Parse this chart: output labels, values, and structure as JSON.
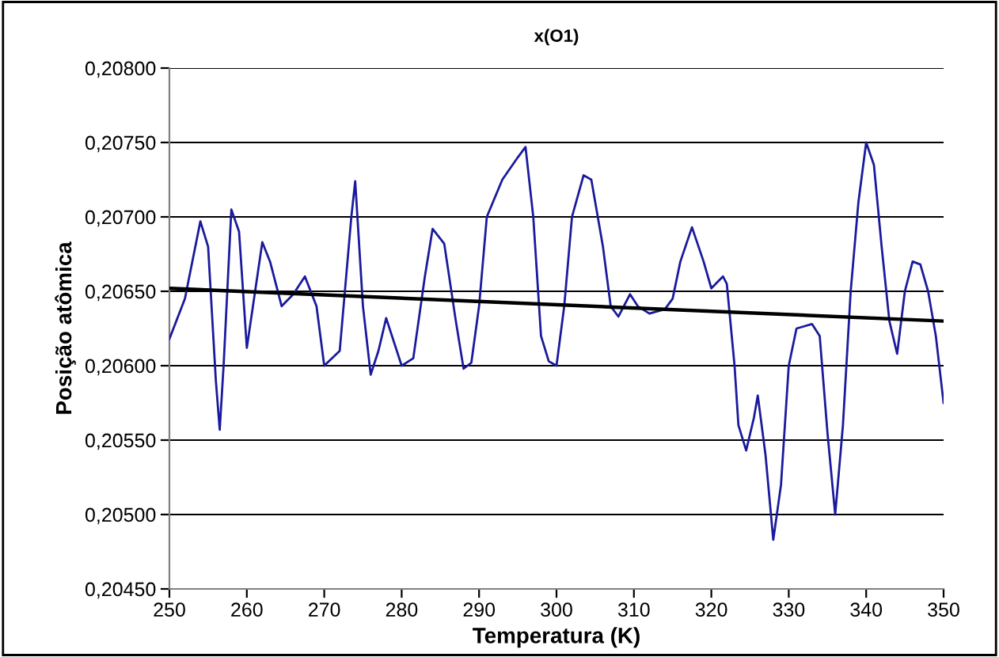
{
  "chart_data": {
    "type": "line",
    "title": "x(O1)",
    "xlabel": "Temperatura (K)",
    "ylabel": "Posição atômica",
    "xlim": [
      250,
      350
    ],
    "xticks": [
      250,
      260,
      270,
      280,
      290,
      300,
      310,
      320,
      330,
      340,
      350
    ],
    "ylim": [
      0.2045,
      0.208
    ],
    "yticks": [
      {
        "value": 0.2045,
        "label": "0,20450"
      },
      {
        "value": 0.205,
        "label": "0,20500"
      },
      {
        "value": 0.2055,
        "label": "0,20550"
      },
      {
        "value": 0.206,
        "label": "0,20600"
      },
      {
        "value": 0.2065,
        "label": "0,20650"
      },
      {
        "value": 0.207,
        "label": "0,20700"
      },
      {
        "value": 0.2075,
        "label": "0,20750"
      },
      {
        "value": 0.208,
        "label": "0,20800"
      }
    ],
    "grid": "y",
    "legend": false,
    "marker": "none",
    "line_style": "solid",
    "series": [
      {
        "color": "#1a1a9c",
        "x": [
          250,
          252,
          254,
          255,
          256,
          256.5,
          257,
          258,
          259,
          260,
          262,
          263,
          264.5,
          266,
          267.5,
          269,
          270,
          272,
          273.5,
          274,
          275,
          276,
          277,
          278,
          280,
          281.5,
          283,
          284,
          285.5,
          287,
          288,
          289,
          290,
          291,
          293,
          295,
          296,
          297,
          298,
          299,
          300,
          301,
          302,
          303.5,
          304.5,
          306,
          307,
          308,
          309.5,
          310.5,
          312,
          314,
          315,
          316,
          317.5,
          319,
          320,
          321.5,
          322,
          323,
          323.5,
          324.5,
          325.5,
          326,
          327,
          328,
          329,
          330,
          331,
          333,
          334,
          335,
          336,
          337,
          338,
          339,
          340,
          341,
          342,
          343,
          344,
          345,
          346,
          347,
          348,
          349,
          350
        ],
        "values": [
          0.20618,
          0.20645,
          0.20697,
          0.2068,
          0.2059,
          0.20557,
          0.206,
          0.20705,
          0.2069,
          0.20612,
          0.20683,
          0.2067,
          0.2064,
          0.20648,
          0.2066,
          0.2064,
          0.206,
          0.2061,
          0.207,
          0.20724,
          0.2064,
          0.20594,
          0.2061,
          0.20632,
          0.206,
          0.20605,
          0.2066,
          0.20692,
          0.20682,
          0.2063,
          0.20598,
          0.20602,
          0.2064,
          0.207,
          0.20725,
          0.2074,
          0.20747,
          0.207,
          0.2062,
          0.20603,
          0.206,
          0.2064,
          0.207,
          0.20728,
          0.20725,
          0.2068,
          0.2064,
          0.20633,
          0.20648,
          0.2064,
          0.20635,
          0.20638,
          0.20645,
          0.2067,
          0.20693,
          0.2067,
          0.20652,
          0.2066,
          0.20655,
          0.206,
          0.2056,
          0.20543,
          0.20565,
          0.2058,
          0.2054,
          0.20483,
          0.2052,
          0.206,
          0.20625,
          0.20628,
          0.2062,
          0.20555,
          0.205,
          0.2056,
          0.2065,
          0.2071,
          0.2075,
          0.20735,
          0.2068,
          0.2063,
          0.20608,
          0.2065,
          0.2067,
          0.20668,
          0.2065,
          0.2062,
          0.20575
        ]
      },
      {
        "color": "#000000",
        "x": [
          250,
          350
        ],
        "values": [
          0.20652,
          0.2063
        ]
      }
    ]
  }
}
